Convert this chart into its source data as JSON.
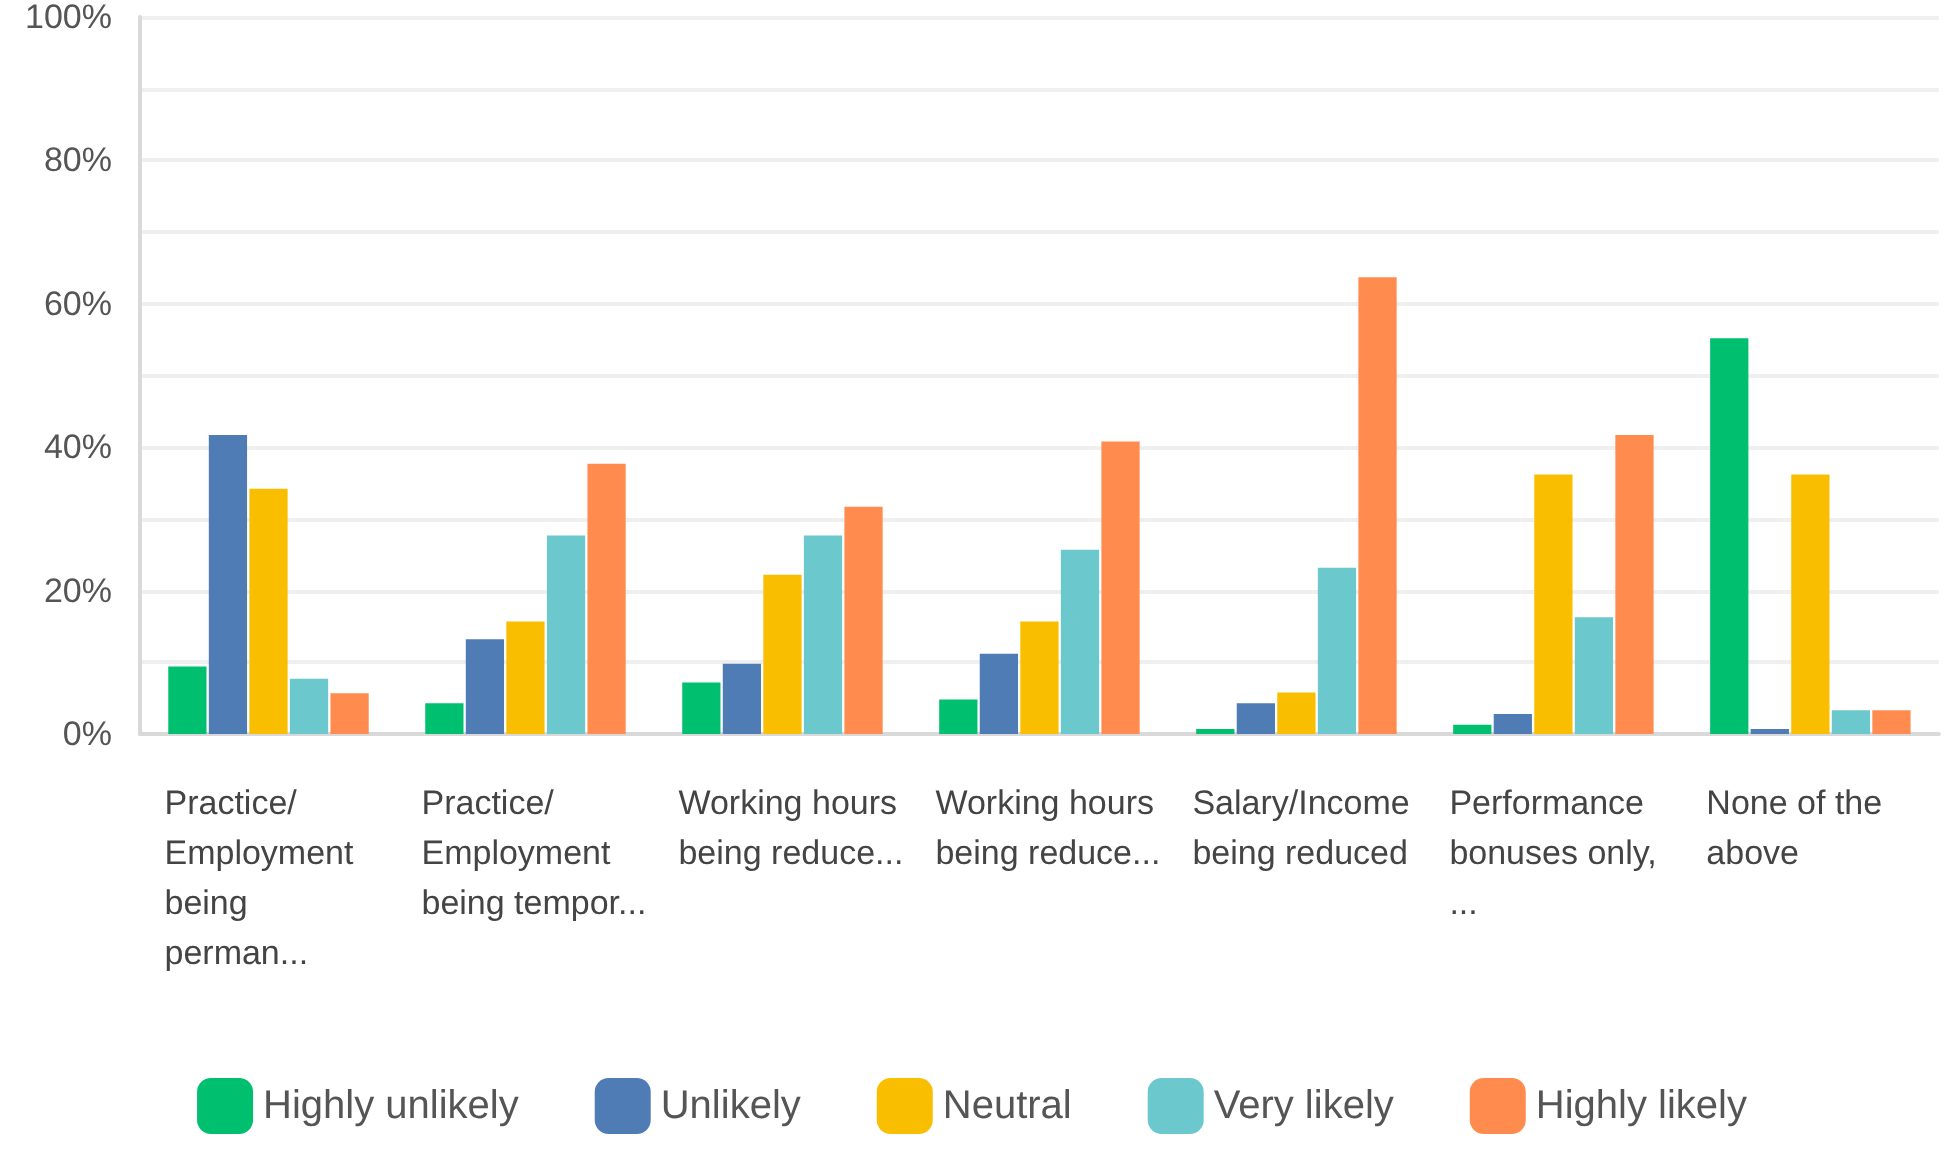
{
  "chart_data": {
    "type": "bar",
    "categories": [
      "Practice/Employment being perman...",
      "Practice/Employment being tempor...",
      "Working hours being reduce...",
      "Working hours being reduce...",
      "Salary/Income being reduced",
      "Performance bonuses only,...",
      "None of the above"
    ],
    "series": [
      {
        "name": "Highly unlikely",
        "color": "#00bf6f",
        "values": [
          9.4,
          4.3,
          7.2,
          4.8,
          0.7,
          1.3,
          55.2
        ]
      },
      {
        "name": "Unlikely",
        "color": "#507cb6",
        "values": [
          41.7,
          13.2,
          9.8,
          11.2,
          4.3,
          2.8,
          0.7
        ]
      },
      {
        "name": "Neutral",
        "color": "#f9be00",
        "values": [
          34.2,
          15.7,
          22.2,
          15.7,
          5.8,
          36.2,
          36.2
        ]
      },
      {
        "name": "Very likely",
        "color": "#6bc8cd",
        "values": [
          7.7,
          27.7,
          27.7,
          25.7,
          23.2,
          16.3,
          3.3
        ]
      },
      {
        "name": "Highly likely",
        "color": "#ff8b4f",
        "values": [
          5.7,
          37.7,
          31.7,
          40.8,
          63.7,
          41.7,
          3.3
        ]
      }
    ],
    "ylim": [
      0,
      100
    ],
    "yticks": [
      {
        "value": 0,
        "label": "0%"
      },
      {
        "value": 10,
        "label": null
      },
      {
        "value": 20,
        "label": "20%"
      },
      {
        "value": 30,
        "label": null
      },
      {
        "value": 40,
        "label": "40%"
      },
      {
        "value": 50,
        "label": null
      },
      {
        "value": 60,
        "label": "60%"
      },
      {
        "value": 70,
        "label": null
      },
      {
        "value": 80,
        "label": "80%"
      },
      {
        "value": 90,
        "label": null
      },
      {
        "value": 100,
        "label": "100%"
      }
    ],
    "grid": "y",
    "legend": "bottom"
  }
}
